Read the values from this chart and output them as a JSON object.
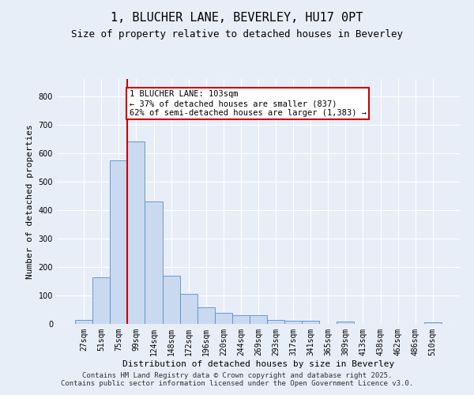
{
  "title": "1, BLUCHER LANE, BEVERLEY, HU17 0PT",
  "subtitle": "Size of property relative to detached houses in Beverley",
  "xlabel": "Distribution of detached houses by size in Beverley",
  "ylabel": "Number of detached properties",
  "categories": [
    "27sqm",
    "51sqm",
    "75sqm",
    "99sqm",
    "124sqm",
    "148sqm",
    "172sqm",
    "196sqm",
    "220sqm",
    "244sqm",
    "269sqm",
    "293sqm",
    "317sqm",
    "341sqm",
    "365sqm",
    "389sqm",
    "413sqm",
    "438sqm",
    "462sqm",
    "486sqm",
    "510sqm"
  ],
  "bar_heights": [
    15,
    165,
    575,
    640,
    430,
    170,
    105,
    57,
    40,
    30,
    30,
    15,
    10,
    10,
    0,
    8,
    0,
    0,
    0,
    0,
    5
  ],
  "bar_color": "#c8d9f0",
  "bar_edge_color": "#5b8ec7",
  "vline_x_index": 3,
  "vline_color": "#cc0000",
  "annotation_text": "1 BLUCHER LANE: 103sqm\n← 37% of detached houses are smaller (837)\n62% of semi-detached houses are larger (1,383) →",
  "annotation_box_color": "#ffffff",
  "annotation_box_edge": "#cc0000",
  "footer": "Contains HM Land Registry data © Crown copyright and database right 2025.\nContains public sector information licensed under the Open Government Licence v3.0.",
  "background_color": "#e8eef8",
  "grid_color": "#ffffff",
  "ylim": [
    0,
    860
  ],
  "yticks": [
    0,
    100,
    200,
    300,
    400,
    500,
    600,
    700,
    800
  ],
  "title_fontsize": 11,
  "subtitle_fontsize": 9,
  "label_fontsize": 8,
  "tick_fontsize": 7,
  "annotation_fontsize": 7.5,
  "footer_fontsize": 6.5
}
